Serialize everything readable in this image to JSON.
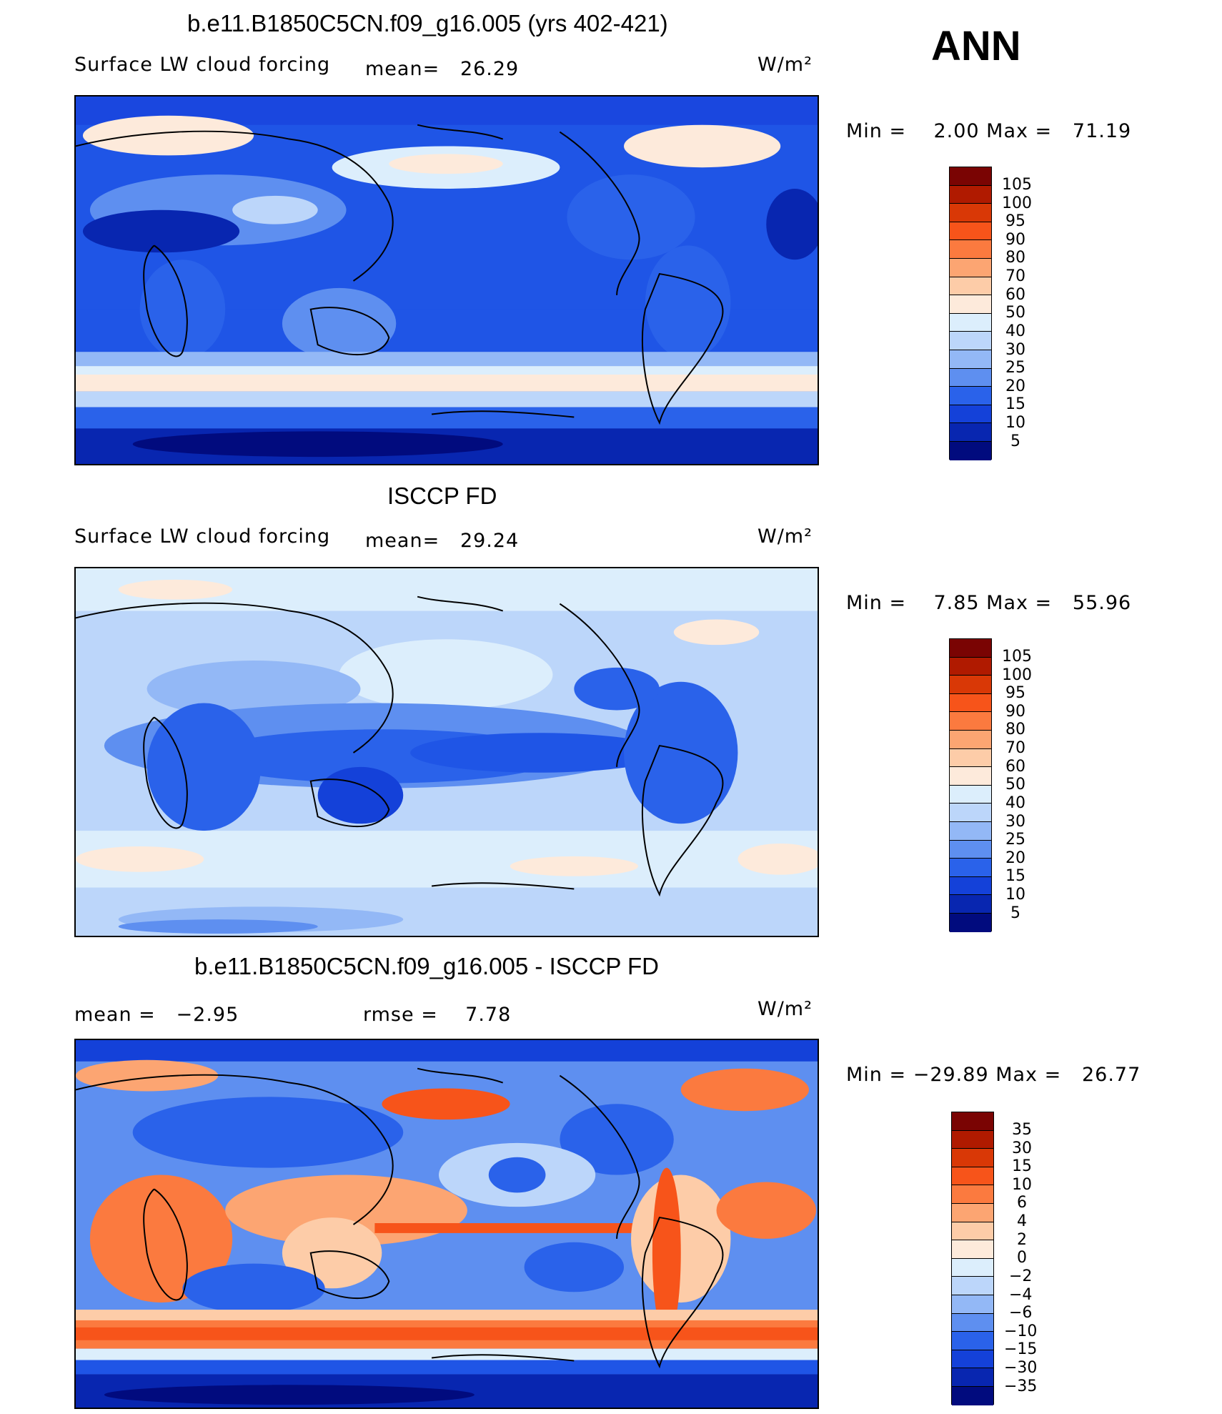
{
  "season": "ANN",
  "units": "W/m²",
  "panels": [
    {
      "title": "b.e11.B1850C5CN.f09_g16.005 (yrs 402-421)",
      "variable": "Surface LW cloud forcing",
      "stat1": "mean=   26.29",
      "stat2": "",
      "units": "W/m²",
      "minmax": "Min =    2.00 Max =   71.19",
      "colorbar": {
        "labels": [
          "105",
          "100",
          "95",
          "90",
          "80",
          "70",
          "60",
          "50",
          "40",
          "30",
          "25",
          "20",
          "15",
          "10",
          "5"
        ],
        "colors": [
          "#7a0403",
          "#b01a00",
          "#d93806",
          "#f7541a",
          "#fb7a3f",
          "#fca572",
          "#fdcca8",
          "#fdeadb",
          "#dceefc",
          "#bcd6fa",
          "#93b8f6",
          "#5e8ff0",
          "#2a62ea",
          "#1441d9",
          "#0826b0",
          "#010b7e"
        ]
      }
    },
    {
      "title": "ISCCP FD",
      "variable": "Surface LW cloud forcing",
      "stat1": "mean=   29.24",
      "stat2": "",
      "units": "W/m²",
      "minmax": "Min =    7.85 Max =   55.96",
      "colorbar": {
        "labels": [
          "105",
          "100",
          "95",
          "90",
          "80",
          "70",
          "60",
          "50",
          "40",
          "30",
          "25",
          "20",
          "15",
          "10",
          "5"
        ],
        "colors": [
          "#7a0403",
          "#b01a00",
          "#d93806",
          "#f7541a",
          "#fb7a3f",
          "#fca572",
          "#fdcca8",
          "#fdeadb",
          "#dceefc",
          "#bcd6fa",
          "#93b8f6",
          "#5e8ff0",
          "#2a62ea",
          "#1441d9",
          "#0826b0",
          "#010b7e"
        ]
      }
    },
    {
      "title": "b.e11.B1850C5CN.f09_g16.005 - ISCCP FD",
      "variable": "",
      "stat1": "mean =   −2.95",
      "stat2": "rmse =    7.78",
      "units": "W/m²",
      "minmax": "Min = −29.89 Max =   26.77",
      "colorbar": {
        "labels": [
          "35",
          "30",
          "15",
          "10",
          "6",
          "4",
          "2",
          "0",
          "−2",
          "−4",
          "−6",
          "−10",
          "−15",
          "−30",
          "−35"
        ],
        "colors": [
          "#7a0403",
          "#b01a00",
          "#d93806",
          "#f7541a",
          "#fb7a3f",
          "#fca572",
          "#fdcca8",
          "#fdeadb",
          "#dceefc",
          "#bcd6fa",
          "#93b8f6",
          "#5e8ff0",
          "#2a62ea",
          "#1441d9",
          "#0826b0",
          "#010b7e"
        ]
      }
    }
  ]
}
